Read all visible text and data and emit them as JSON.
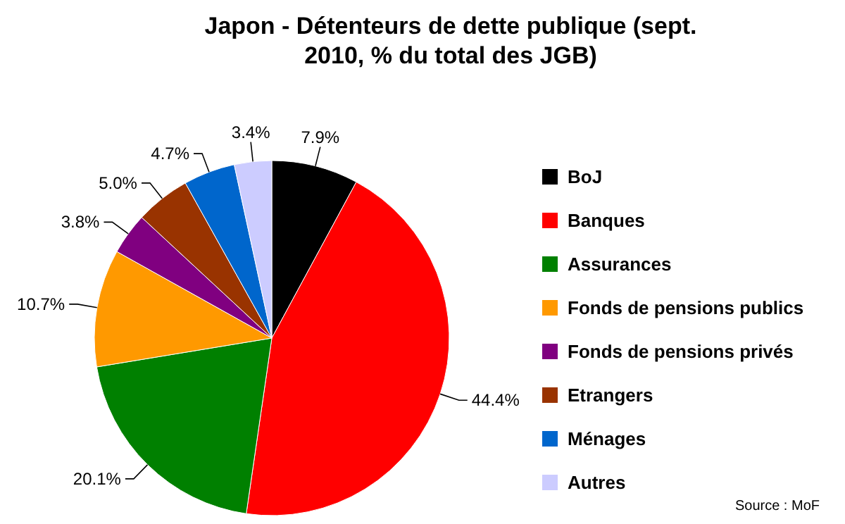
{
  "chart_data": {
    "type": "pie",
    "title": "Japon - Détenteurs de dette publique (sept. 2010,  % du total des JGB)",
    "categories": [
      "BoJ",
      "Banques",
      "Assurances",
      "Fonds de pensions publics",
      "Fonds de pensions privés",
      "Etrangers",
      "Ménages",
      "Autres"
    ],
    "values": [
      7.9,
      44.4,
      20.1,
      10.7,
      3.8,
      5.0,
      4.7,
      3.4
    ],
    "value_labels": [
      "7.9%",
      "44.4%",
      "20.1%",
      "10.7%",
      "3.8%",
      "5.0%",
      "4.7%",
      "3.4%"
    ],
    "colors": [
      "#000000",
      "#ff0000",
      "#008000",
      "#ff9900",
      "#800080",
      "#993300",
      "#0066cc",
      "#ccccff"
    ],
    "legend": "right",
    "annotations": [
      "Source : MoF"
    ]
  }
}
